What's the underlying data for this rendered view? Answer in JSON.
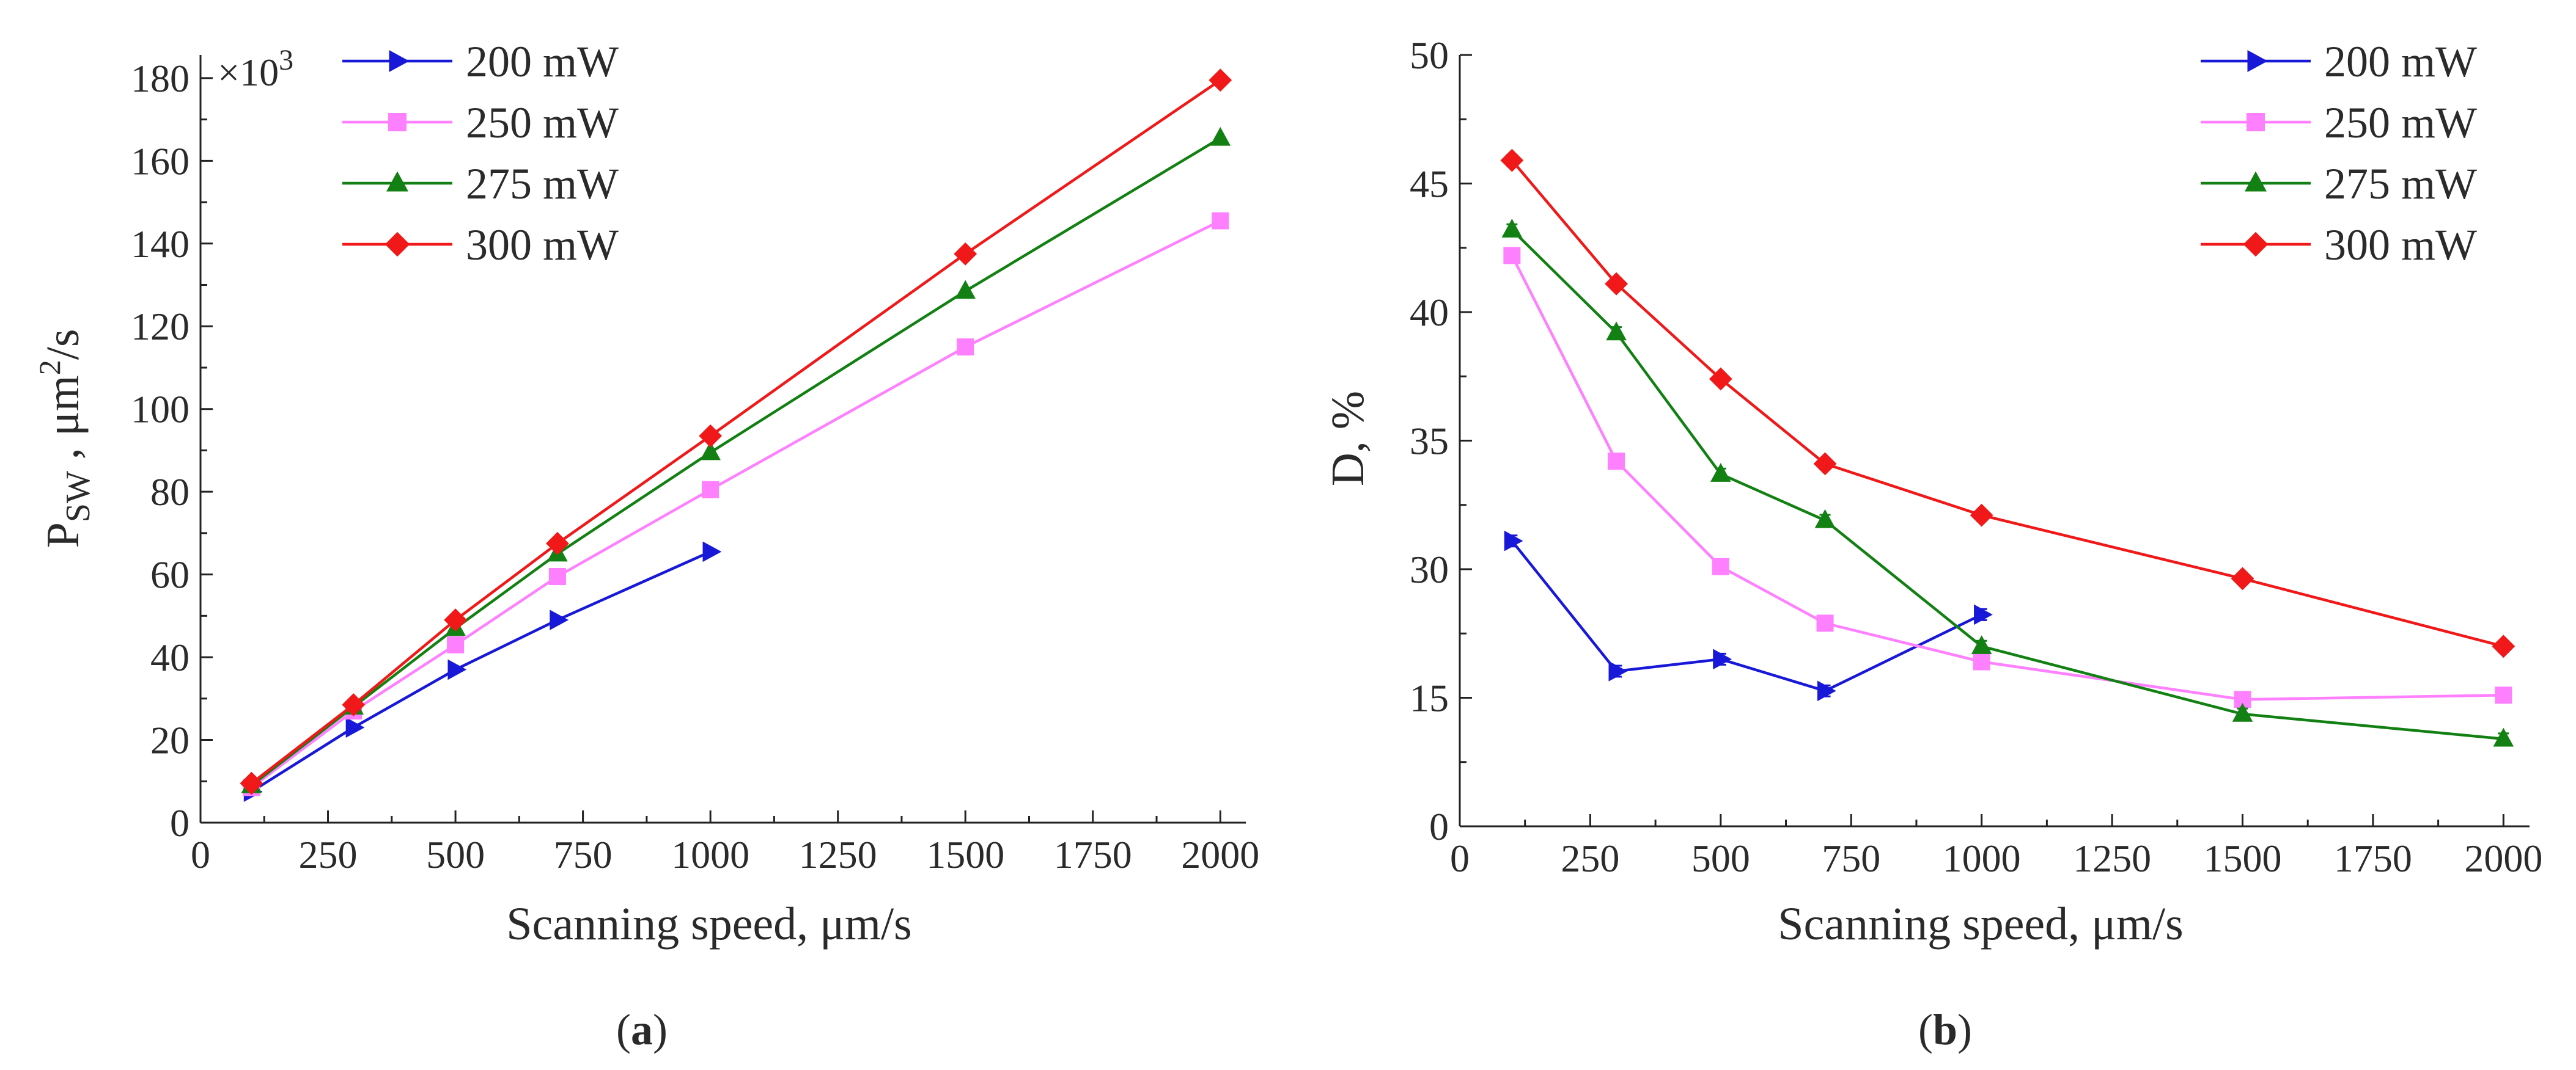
{
  "chart_data": [
    {
      "type": "line",
      "panel_label": "a",
      "xlabel": "Scanning speed, μm/s",
      "ylabel_main": "P",
      "ylabel_sub": "SW",
      "ylabel_unit": " , μm",
      "ylabel_sup": "2",
      "ylabel_tail": "/s",
      "scale_note": "×10",
      "scale_note_sup": "3",
      "xlim": [
        0,
        2050
      ],
      "ylim": [
        0,
        185
      ],
      "xticks": [
        0,
        250,
        500,
        750,
        1000,
        1250,
        1500,
        1750,
        2000
      ],
      "yticks": [
        0,
        20,
        40,
        60,
        80,
        100,
        120,
        140,
        160,
        180
      ],
      "legend_position": "top-left",
      "series": [
        {
          "name": "200 mW",
          "color": "#1818d8",
          "marker": "triangle-right",
          "x": [
            100,
            300,
            500,
            700,
            1000
          ],
          "y": [
            7.5,
            23,
            37,
            49,
            65.5
          ]
        },
        {
          "name": "250 mW",
          "color": "#ff80ff",
          "marker": "square",
          "x": [
            100,
            300,
            500,
            700,
            1000,
            1500,
            2000
          ],
          "y": [
            8.5,
            27,
            43,
            59.5,
            80.5,
            115,
            145.5
          ]
        },
        {
          "name": "275 mW",
          "color": "#128012",
          "marker": "triangle-up",
          "x": [
            100,
            300,
            500,
            700,
            1000,
            1500,
            2000
          ],
          "y": [
            9,
            28,
            47,
            65,
            89.5,
            128.5,
            165.5
          ]
        },
        {
          "name": "300 mW",
          "color": "#f01818",
          "marker": "diamond",
          "x": [
            100,
            300,
            500,
            700,
            1000,
            1500,
            2000
          ],
          "y": [
            9.5,
            28.5,
            49,
            67.5,
            93.5,
            137.5,
            179.5
          ]
        }
      ]
    },
    {
      "type": "line",
      "panel_label": "b",
      "xlabel": "Scanning speed, μm/s",
      "ylabel": "D, %",
      "xlim": [
        0,
        2050
      ],
      "ylim": [
        0,
        50
      ],
      "xticks": [
        0,
        250,
        500,
        750,
        1000,
        1250,
        1500,
        1750,
        2000
      ],
      "yticks": [
        0,
        15,
        30,
        35,
        40,
        45,
        50
      ],
      "yticks_spacing": "uniform",
      "legend_position": "top-right",
      "error_bars": true,
      "series": [
        {
          "name": "200 mW",
          "color": "#1818d8",
          "marker": "triangle-right",
          "x": [
            100,
            300,
            500,
            700,
            1000
          ],
          "y": [
            31.1,
            18.1,
            19.5,
            15.8,
            24.7
          ]
        },
        {
          "name": "250 mW",
          "color": "#ff80ff",
          "marker": "square",
          "x": [
            100,
            300,
            500,
            700,
            1000,
            1500,
            2000
          ],
          "y": [
            42.2,
            34.2,
            30.1,
            23.7,
            19.2,
            14.8,
            15.3
          ]
        },
        {
          "name": "275 mW",
          "color": "#128012",
          "marker": "triangle-up",
          "x": [
            100,
            300,
            500,
            700,
            1000,
            1500,
            2000
          ],
          "y": [
            43.2,
            39.2,
            33.7,
            31.9,
            21.0,
            13.1,
            10.2
          ]
        },
        {
          "name": "300 mW",
          "color": "#f01818",
          "marker": "diamond",
          "x": [
            100,
            300,
            500,
            700,
            1000,
            1500,
            2000
          ],
          "y": [
            45.9,
            41.1,
            37.4,
            34.1,
            32.1,
            28.9,
            21.0
          ]
        }
      ]
    }
  ]
}
